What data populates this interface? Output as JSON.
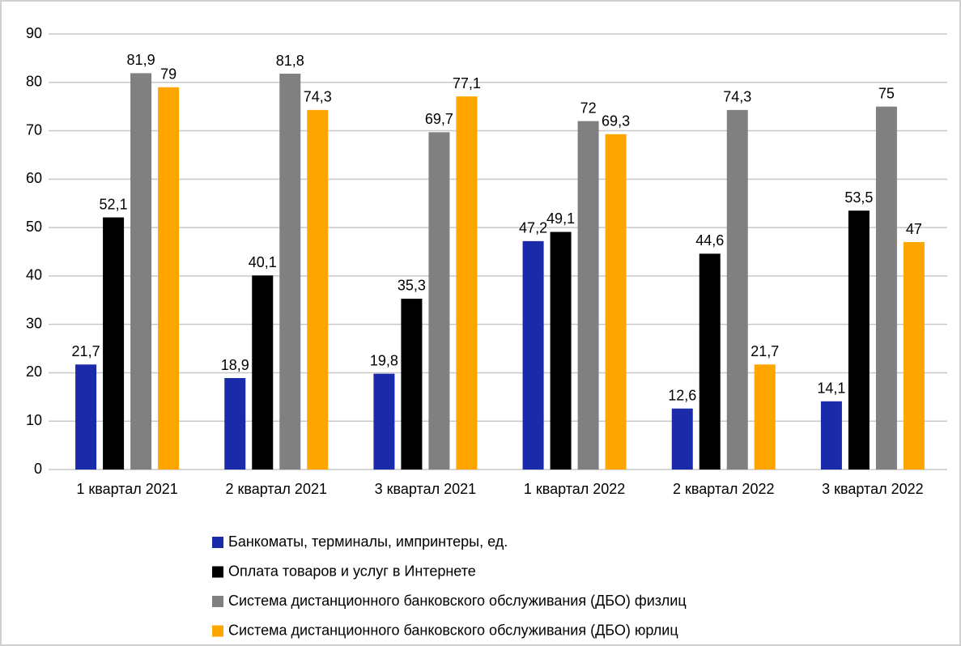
{
  "chart_data": {
    "type": "bar",
    "categories": [
      "1 квартал 2021",
      "2 квартал 2021",
      "3 квартал 2021",
      "1 квартал 2022",
      "2 квартал 2022",
      "3 квартал 2022"
    ],
    "series": [
      {
        "name": "Банкоматы, терминалы, импринтеры, ед.",
        "color": "#1a2aa8",
        "values": [
          21.7,
          18.9,
          19.8,
          47.2,
          12.6,
          14.1
        ],
        "value_labels": [
          "21,7",
          "18,9",
          "19,8",
          "47,2",
          "12,6",
          "14,1"
        ]
      },
      {
        "name": "Оплата товаров и услуг в Интернете",
        "color": "#000000",
        "values": [
          52.1,
          40.1,
          35.3,
          49.1,
          44.6,
          53.5
        ],
        "value_labels": [
          "52,1",
          "40,1",
          "35,3",
          "49,1",
          "44,6",
          "53,5"
        ]
      },
      {
        "name": "Система дистанционного банковского обслуживания (ДБО) физлиц",
        "color": "#808080",
        "values": [
          81.9,
          81.8,
          69.7,
          72,
          74.3,
          75
        ],
        "value_labels": [
          "81,9",
          "81,8",
          "69,7",
          "72",
          "74,3",
          "75"
        ]
      },
      {
        "name": "Система дистанционного банковского обслуживания (ДБО) юрлиц",
        "color": "#ffa500",
        "values": [
          79,
          74.3,
          77.1,
          69.3,
          21.7,
          47
        ],
        "value_labels": [
          "79",
          "74,3",
          "77,1",
          "69,3",
          "21,7",
          "47"
        ]
      }
    ],
    "ylim": [
      0,
      90
    ],
    "yticks": [
      0,
      10,
      20,
      30,
      40,
      50,
      60,
      70,
      80,
      90
    ],
    "grid": true,
    "legend": "bottom"
  }
}
